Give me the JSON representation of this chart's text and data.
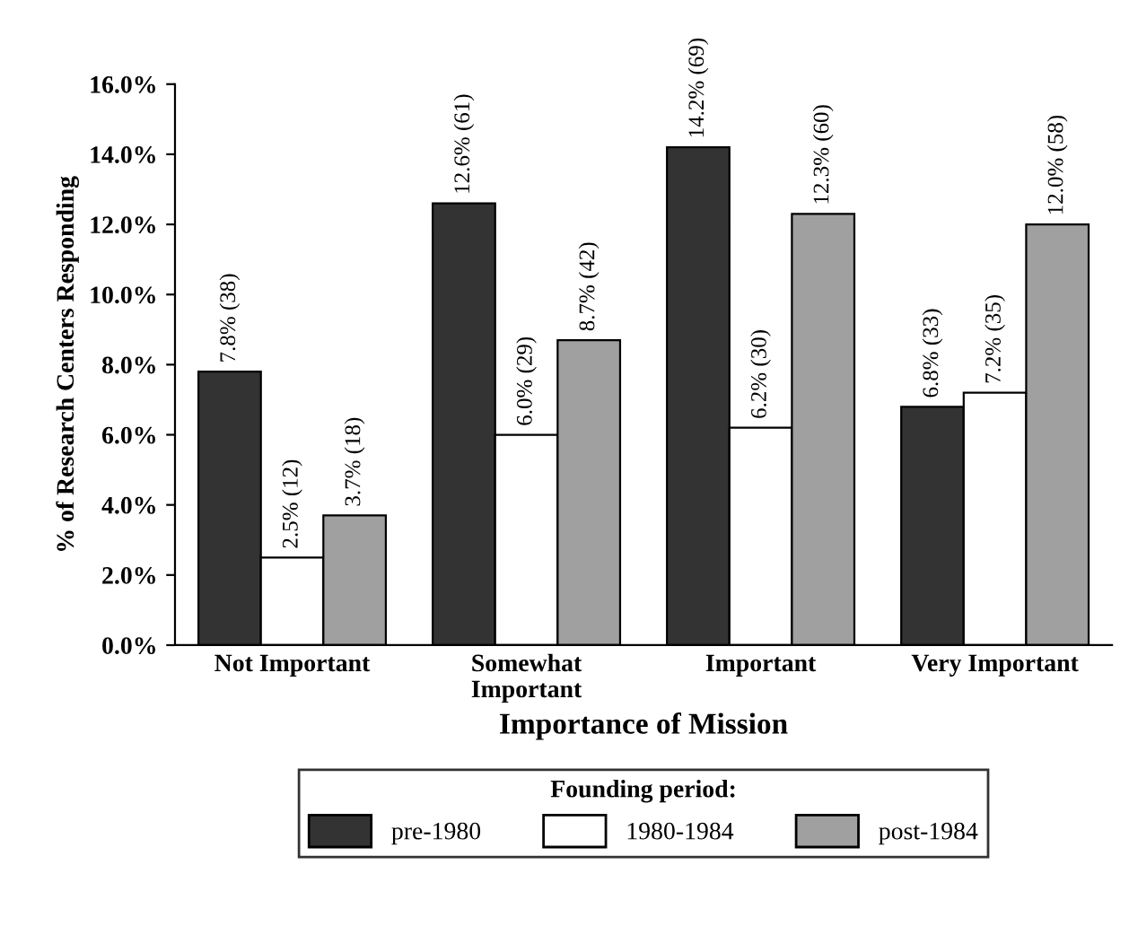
{
  "chart_data": {
    "type": "bar",
    "xlabel": "Importance of Mission",
    "ylabel": "% of Research Centers Responding",
    "legend_title": "Founding period:",
    "legend": "bottom",
    "grid": false,
    "categories": [
      "Not Important",
      "Somewhat\nImportant",
      "Important",
      "Very Important"
    ],
    "ylim": [
      0,
      16
    ],
    "yticks": [
      {
        "value": 0,
        "label": "0.0%"
      },
      {
        "value": 2,
        "label": "2.0%"
      },
      {
        "value": 4,
        "label": "4.0%"
      },
      {
        "value": 6,
        "label": "6.0%"
      },
      {
        "value": 8,
        "label": "8.0%"
      },
      {
        "value": 10,
        "label": "10.0%"
      },
      {
        "value": 12,
        "label": "12.0%"
      },
      {
        "value": 14,
        "label": "14.0%"
      },
      {
        "value": 16,
        "label": "16.0%"
      }
    ],
    "series": [
      {
        "name": "pre-1980",
        "color": "#333333",
        "values": [
          7.8,
          12.6,
          14.2,
          6.8
        ],
        "value_labels": [
          "7.8% (38)",
          "12.6% (61)",
          "14.2% (69)",
          "6.8% (33)"
        ]
      },
      {
        "name": "1980-1984",
        "color": "#ffffff",
        "values": [
          2.5,
          6.0,
          6.2,
          7.2
        ],
        "value_labels": [
          "2.5% (12)",
          "6.0% (29)",
          "6.2% (30)",
          "7.2% (35)"
        ]
      },
      {
        "name": "post-1984",
        "color": "#a0a0a0",
        "values": [
          3.7,
          8.7,
          12.3,
          12.0
        ],
        "value_labels": [
          "3.7% (18)",
          "8.7% (42)",
          "12.3% (60)",
          "12.0% (58)"
        ]
      }
    ]
  }
}
